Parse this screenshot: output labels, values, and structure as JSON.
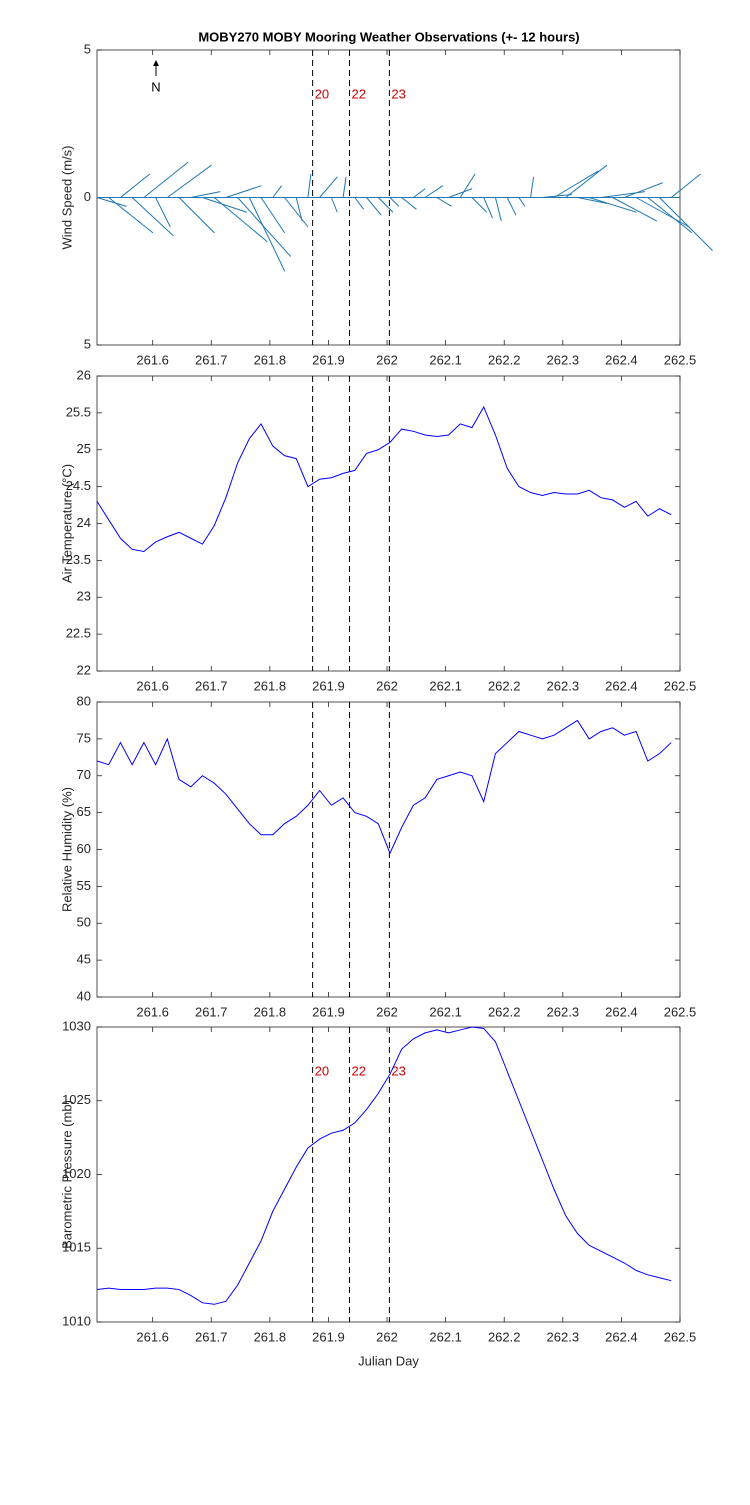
{
  "title": "MOBY270 MOBY Mooring Weather Observations (+- 12 hours)",
  "chart_data": [
    {
      "type": "feather",
      "ylabel": "Wind Speed (m/s)",
      "color": "#1f77b4",
      "annotation": "N",
      "xlim": [
        261.505,
        262.5
      ],
      "xticks": [
        261.6,
        261.7,
        261.8,
        261.9,
        262,
        262.1,
        262.2,
        262.3,
        262.4,
        262.5
      ],
      "ylim": [
        -5,
        5
      ],
      "yticks": [
        {
          "value": -5,
          "label": "5"
        },
        0,
        5
      ],
      "vlines": [
        261.873,
        261.936,
        262.004
      ],
      "vline_labels": [
        "20",
        "22",
        "23"
      ],
      "vline_label_color": "#cc0000",
      "x": [
        261.505,
        261.525,
        261.545,
        261.565,
        261.585,
        261.605,
        261.625,
        261.645,
        261.665,
        261.685,
        261.705,
        261.725,
        261.745,
        261.765,
        261.785,
        261.805,
        261.825,
        261.845,
        261.865,
        261.885,
        261.905,
        261.925,
        261.945,
        261.965,
        261.985,
        262.005,
        262.025,
        262.045,
        262.065,
        262.085,
        262.105,
        262.125,
        262.145,
        262.165,
        262.185,
        262.205,
        262.225,
        262.245,
        262.265,
        262.285,
        262.305,
        262.325,
        262.345,
        262.365,
        262.385,
        262.405,
        262.425,
        262.445,
        262.465,
        262.485
      ],
      "u": [
        1.0,
        1.5,
        1.0,
        1.4,
        1.5,
        0.5,
        1.5,
        1.2,
        1.0,
        1.5,
        1.8,
        1.2,
        1.8,
        1.2,
        0.8,
        0.3,
        0.8,
        0.2,
        0.1,
        0.6,
        0.2,
        0.1,
        0.3,
        0.5,
        0.5,
        0.3,
        0.5,
        0.4,
        0.6,
        0.5,
        0.8,
        0.5,
        0.5,
        0.3,
        0.2,
        0.3,
        0.2,
        0.1,
        1.0,
        1.5,
        1.4,
        1.0,
        1.6,
        1.5,
        1.5,
        1.3,
        1.8,
        1.5,
        1.8,
        1.0
      ],
      "v": [
        -0.3,
        -1.2,
        0.8,
        -1.3,
        1.2,
        -1.0,
        1.1,
        -1.2,
        0.2,
        -0.5,
        -1.5,
        0.4,
        -2.0,
        -2.5,
        -1.2,
        0.4,
        -1.0,
        -0.8,
        0.8,
        0.7,
        -0.5,
        0.7,
        -0.4,
        -0.6,
        -0.5,
        -0.3,
        -0.4,
        0.3,
        0.4,
        -0.3,
        0.3,
        0.8,
        -0.5,
        -0.7,
        -0.8,
        -0.6,
        -0.3,
        0.7,
        0.1,
        0.9,
        1.1,
        -0.2,
        -0.5,
        0.2,
        -0.8,
        0.5,
        -1.0,
        -1.2,
        -1.8,
        0.8
      ]
    },
    {
      "type": "line",
      "ylabel": "Air Temperature (°C)",
      "color": "#0000ff",
      "xlim": [
        261.505,
        262.5
      ],
      "xticks": [
        261.6,
        261.7,
        261.8,
        261.9,
        262,
        262.1,
        262.2,
        262.3,
        262.4,
        262.5
      ],
      "ylim": [
        22,
        26
      ],
      "yticks": [
        22,
        22.5,
        23,
        23.5,
        24,
        24.5,
        25,
        25.5,
        26
      ],
      "vlines": [
        261.873,
        261.936,
        262.004
      ],
      "x": [
        261.505,
        261.525,
        261.545,
        261.565,
        261.585,
        261.605,
        261.625,
        261.645,
        261.665,
        261.685,
        261.705,
        261.725,
        261.745,
        261.765,
        261.785,
        261.805,
        261.825,
        261.845,
        261.865,
        261.885,
        261.905,
        261.925,
        261.945,
        261.965,
        261.985,
        262.005,
        262.025,
        262.045,
        262.065,
        262.085,
        262.105,
        262.125,
        262.145,
        262.165,
        262.185,
        262.205,
        262.225,
        262.245,
        262.265,
        262.285,
        262.305,
        262.325,
        262.345,
        262.365,
        262.385,
        262.405,
        262.425,
        262.445,
        262.465,
        262.485
      ],
      "values": [
        24.3,
        24.05,
        23.8,
        23.65,
        23.62,
        23.75,
        23.82,
        23.88,
        23.8,
        23.72,
        23.97,
        24.35,
        24.82,
        25.15,
        25.35,
        25.05,
        24.92,
        24.88,
        24.5,
        24.6,
        24.62,
        24.68,
        24.72,
        24.95,
        25.0,
        25.1,
        25.28,
        25.25,
        25.2,
        25.18,
        25.2,
        25.35,
        25.3,
        25.58,
        25.2,
        24.75,
        24.5,
        24.42,
        24.38,
        24.42,
        24.4,
        24.4,
        24.45,
        24.35,
        24.32,
        24.22,
        24.3,
        24.1,
        24.2,
        24.12
      ]
    },
    {
      "type": "line",
      "ylabel": "Relative Humidity (%)",
      "color": "#0000ff",
      "xlim": [
        261.505,
        262.5
      ],
      "xticks": [
        261.6,
        261.7,
        261.8,
        261.9,
        262,
        262.1,
        262.2,
        262.3,
        262.4,
        262.5
      ],
      "ylim": [
        40,
        80
      ],
      "yticks": [
        40,
        45,
        50,
        55,
        60,
        65,
        70,
        75,
        80
      ],
      "vlines": [
        261.873,
        261.936,
        262.004
      ],
      "x": [
        261.505,
        261.525,
        261.545,
        261.565,
        261.585,
        261.605,
        261.625,
        261.645,
        261.665,
        261.685,
        261.705,
        261.725,
        261.745,
        261.765,
        261.785,
        261.805,
        261.825,
        261.845,
        261.865,
        261.885,
        261.905,
        261.925,
        261.945,
        261.965,
        261.985,
        262.005,
        262.025,
        262.045,
        262.065,
        262.085,
        262.105,
        262.125,
        262.145,
        262.165,
        262.185,
        262.205,
        262.225,
        262.245,
        262.265,
        262.285,
        262.305,
        262.325,
        262.345,
        262.365,
        262.385,
        262.405,
        262.425,
        262.445,
        262.465,
        262.485
      ],
      "values": [
        72,
        71.5,
        74.5,
        71.5,
        74.5,
        71.5,
        75,
        69.5,
        68.5,
        70,
        69,
        67.5,
        65.5,
        63.5,
        62,
        62,
        63.5,
        64.5,
        66,
        68,
        66,
        67,
        65,
        64.5,
        63.5,
        59.5,
        63,
        66,
        67,
        69.5,
        70,
        70.5,
        70,
        66.5,
        73,
        74.5,
        76,
        75.5,
        75,
        75.5,
        76.5,
        77.5,
        75,
        76,
        76.5,
        75.5,
        76,
        72,
        73,
        74.5
      ]
    },
    {
      "type": "line",
      "ylabel": "Barometric Pressure (mb)",
      "xlabel": "Julian Day",
      "color": "#0000ff",
      "xlim": [
        261.505,
        262.5
      ],
      "xticks": [
        261.6,
        261.7,
        261.8,
        261.9,
        262,
        262.1,
        262.2,
        262.3,
        262.4,
        262.5
      ],
      "ylim": [
        1010,
        1030
      ],
      "yticks": [
        1010,
        1015,
        1020,
        1025,
        1030
      ],
      "vlines": [
        261.873,
        261.936,
        262.004
      ],
      "vline_labels": [
        "20",
        "22",
        "23"
      ],
      "vline_label_color": "#cc0000",
      "x": [
        261.505,
        261.525,
        261.545,
        261.565,
        261.585,
        261.605,
        261.625,
        261.645,
        261.665,
        261.685,
        261.705,
        261.725,
        261.745,
        261.765,
        261.785,
        261.805,
        261.825,
        261.845,
        261.865,
        261.885,
        261.905,
        261.925,
        261.945,
        261.965,
        261.985,
        262.005,
        262.025,
        262.045,
        262.065,
        262.085,
        262.105,
        262.125,
        262.145,
        262.165,
        262.185,
        262.205,
        262.225,
        262.245,
        262.265,
        262.285,
        262.305,
        262.325,
        262.345,
        262.365,
        262.385,
        262.405,
        262.425,
        262.445,
        262.465,
        262.485
      ],
      "values": [
        1012.2,
        1012.3,
        1012.2,
        1012.2,
        1012.2,
        1012.3,
        1012.3,
        1012.2,
        1011.8,
        1011.3,
        1011.2,
        1011.4,
        1012.5,
        1014.0,
        1015.5,
        1017.5,
        1019.0,
        1020.5,
        1021.8,
        1022.4,
        1022.8,
        1023.0,
        1023.5,
        1024.4,
        1025.5,
        1026.8,
        1028.5,
        1029.2,
        1029.6,
        1029.8,
        1029.6,
        1029.8,
        1030.0,
        1029.9,
        1029.0,
        1027.0,
        1025.0,
        1023.0,
        1021.0,
        1019.0,
        1017.2,
        1016.0,
        1015.2,
        1014.8,
        1014.4,
        1014.0,
        1013.5,
        1013.2,
        1013.0,
        1012.8
      ]
    }
  ]
}
